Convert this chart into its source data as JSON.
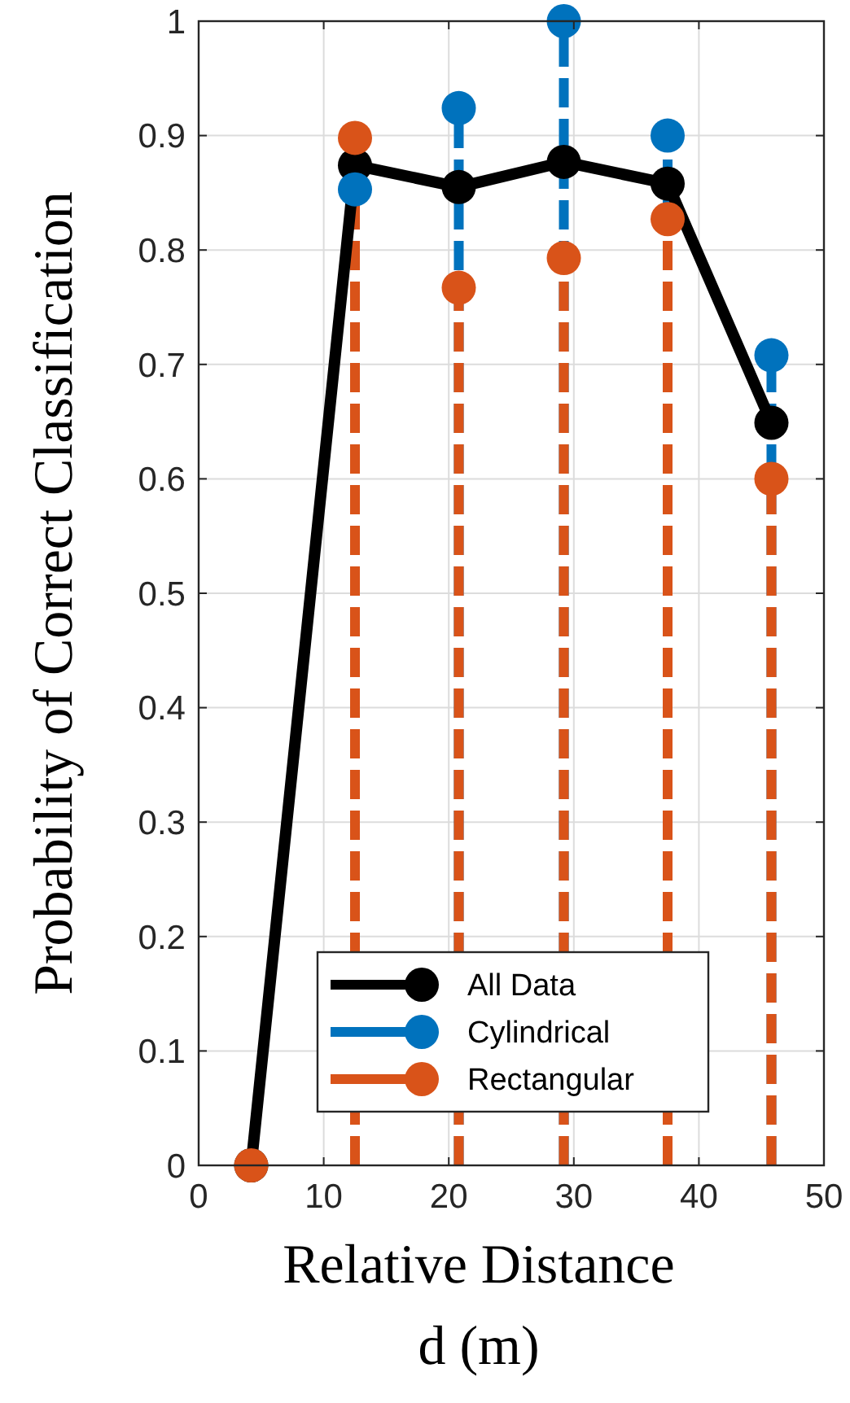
{
  "chart_data": {
    "type": "lollipop",
    "xlabel": "Relative Distance\nd (m)",
    "ylabel": "Probability of Correct Classification",
    "x": [
      4.2,
      12.5,
      20.8,
      29.2,
      37.5,
      45.8
    ],
    "xlim": [
      0,
      50
    ],
    "xticks": [
      0,
      10,
      20,
      30,
      40,
      50
    ],
    "ylim": [
      0,
      1
    ],
    "yticks": [
      0,
      0.1,
      0.2,
      0.3,
      0.4,
      0.5,
      0.6,
      0.7,
      0.8,
      0.9,
      1
    ],
    "grid": true,
    "legend": "bottom",
    "marker": "circle",
    "series": [
      {
        "name": "All Data",
        "type": "line",
        "color": "#000000",
        "line_style": "solid",
        "values": [
          0,
          0.874,
          0.855,
          0.877,
          0.858,
          0.649
        ]
      },
      {
        "name": "Cylindrical",
        "color": "#0072bd",
        "line_style": "dashed",
        "values": [
          null,
          0.853,
          0.924,
          1.0,
          0.9,
          0.708
        ]
      },
      {
        "name": "Rectangular",
        "color": "#d95319",
        "line_style": "dashed",
        "values": [
          0,
          0.898,
          0.767,
          0.793,
          0.827,
          0.6
        ]
      }
    ]
  }
}
